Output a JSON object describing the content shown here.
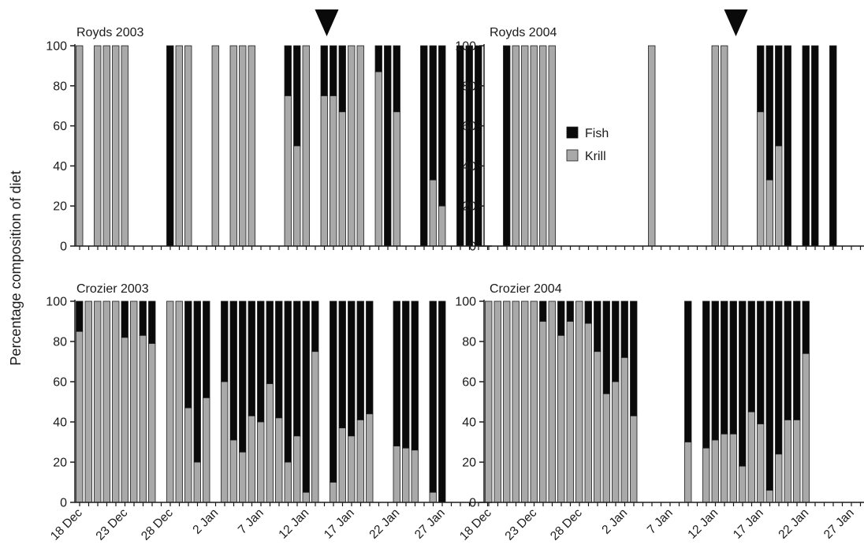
{
  "figure": {
    "ylabel": "Percentage composition of diet",
    "legend": {
      "position": "inside Royds 2004 panel, center",
      "items": [
        {
          "label": "Fish",
          "color": "#0a0a0a"
        },
        {
          "label": "Krill",
          "color": "#a9a9a9"
        }
      ]
    },
    "x_tick_labels": [
      "18 Dec",
      "23 Dec",
      "28 Dec",
      "2 Jan",
      "7 Jan",
      "12 Jan",
      "17 Jan",
      "22 Jan",
      "27 Jan"
    ],
    "y_tick_labels": [
      "0",
      "20",
      "40",
      "60",
      "80",
      "100"
    ],
    "colors": {
      "fish": "#0a0a0a",
      "krill": "#a9a9a9",
      "axis": "#1a1a1a"
    }
  },
  "chart_data": [
    {
      "type": "bar",
      "stacked": true,
      "title": "Royds 2003",
      "x_start": "18 Dec",
      "ylim": [
        0,
        100
      ],
      "marker": "14 Jan",
      "krill": [
        100,
        null,
        100,
        100,
        100,
        100,
        null,
        null,
        null,
        null,
        0,
        100,
        100,
        null,
        null,
        100,
        null,
        100,
        100,
        100,
        null,
        null,
        null,
        75,
        50,
        100,
        null,
        75,
        75,
        67,
        100,
        100,
        null,
        87,
        0,
        67,
        null,
        null,
        0,
        33,
        20,
        null,
        0,
        0,
        0
      ]
    },
    {
      "type": "bar",
      "stacked": true,
      "title": "Royds 2004",
      "x_start": "18 Dec",
      "ylim": [
        0,
        100
      ],
      "marker": "14 Jan",
      "krill": [
        null,
        null,
        0,
        100,
        100,
        100,
        100,
        100,
        null,
        null,
        null,
        null,
        null,
        null,
        null,
        null,
        null,
        null,
        100,
        null,
        null,
        null,
        null,
        null,
        null,
        100,
        100,
        null,
        null,
        null,
        67,
        33,
        50,
        0,
        null,
        0,
        0,
        null,
        0,
        null,
        null,
        null,
        null,
        null,
        null,
        null
      ]
    },
    {
      "type": "bar",
      "stacked": true,
      "title": "Crozier 2003",
      "x_start": "18 Dec",
      "ylim": [
        0,
        100
      ],
      "krill": [
        85,
        100,
        100,
        100,
        100,
        82,
        100,
        83,
        79,
        null,
        100,
        100,
        47,
        20,
        52,
        null,
        60,
        31,
        25,
        43,
        40,
        59,
        42,
        20,
        33,
        5,
        75,
        null,
        10,
        37,
        33,
        41,
        44,
        null,
        null,
        28,
        27,
        26,
        null,
        5,
        0
      ]
    },
    {
      "type": "bar",
      "stacked": true,
      "title": "Crozier 2004",
      "x_start": "18 Dec",
      "ylim": [
        0,
        100
      ],
      "krill": [
        100,
        100,
        100,
        100,
        100,
        100,
        90,
        100,
        83,
        90,
        100,
        89,
        75,
        54,
        60,
        72,
        43,
        null,
        null,
        null,
        null,
        null,
        30,
        null,
        27,
        31,
        34,
        34,
        18,
        45,
        39,
        6,
        24,
        41,
        41,
        74
      ]
    }
  ]
}
